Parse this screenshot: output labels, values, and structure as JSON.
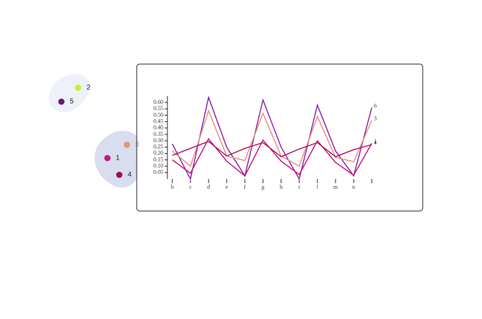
{
  "chart_data": {
    "type": "line",
    "categories": [
      "b",
      "c",
      "d",
      "e",
      "f",
      "g",
      "h",
      "i",
      "l",
      "m",
      "n",
      null
    ],
    "series": [
      {
        "name": "6",
        "color": "#8e24aa",
        "values": [
          0.275,
          0.0,
          0.64,
          0.25,
          0.025,
          0.62,
          0.25,
          0.0,
          0.58,
          0.22,
          0.025,
          0.56
        ]
      },
      {
        "name": "3",
        "color": "#e8907a",
        "values": [
          0.22,
          0.1,
          0.535,
          0.18,
          0.145,
          0.515,
          0.18,
          0.1,
          0.49,
          0.17,
          0.135,
          0.46
        ]
      },
      {
        "name": "1",
        "color": "#c2187b",
        "values": [
          0.15,
          0.045,
          0.315,
          0.14,
          0.025,
          0.305,
          0.14,
          0.035,
          0.3,
          0.13,
          0.03,
          0.28
        ]
      },
      {
        "name": "4",
        "color": "#b0175d",
        "values": [
          0.185,
          0.24,
          0.295,
          0.18,
          0.24,
          0.285,
          0.175,
          0.235,
          0.285,
          0.175,
          0.23,
          0.27
        ]
      }
    ],
    "ylim": [
      0,
      0.65
    ],
    "yticks": [
      0.05,
      {
        "value": 0.1,
        "label": "0.10"
      },
      0.15,
      {
        "value": 0.2,
        "label": "0.20"
      },
      0.25,
      {
        "value": 0.3,
        "label": "0.30"
      },
      0.35,
      {
        "value": 0.4,
        "label": "0.40"
      },
      0.45,
      {
        "value": 0.5,
        "label": "0.50"
      },
      0.55,
      {
        "value": 0.6,
        "label": "0.60"
      }
    ],
    "legend_points": [
      {
        "label": "2",
        "color": "#c6ef2a"
      },
      {
        "label": "5",
        "color": "#6a1b7a"
      },
      {
        "label": "3",
        "color": "#e8907a"
      },
      {
        "label": "1",
        "color": "#c2187b"
      },
      {
        "label": "4",
        "color": "#a0104e"
      }
    ]
  }
}
